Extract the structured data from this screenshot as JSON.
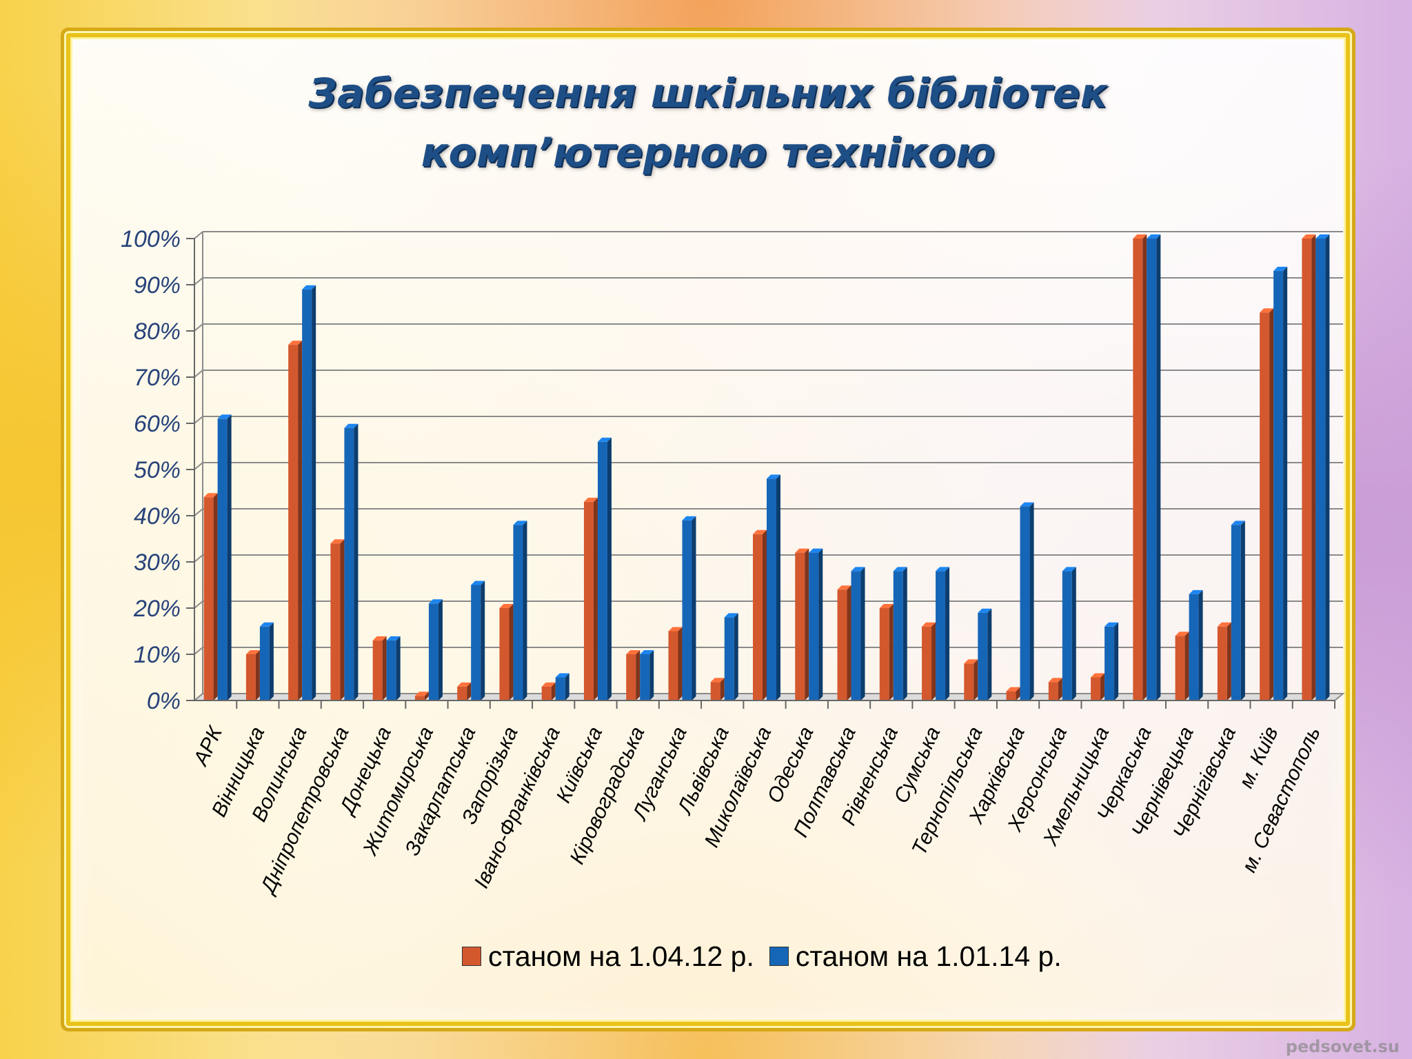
{
  "title": {
    "line1": "Забезпечення шкільних бібліотек",
    "line2": "комп’ютерною технікою"
  },
  "watermark": "pedsovet.su",
  "chart_data": {
    "type": "bar",
    "title": "Забезпечення шкільних бібліотек комп’ютерною технікою",
    "xlabel": "",
    "ylabel": "",
    "ylim": [
      0,
      100
    ],
    "yticks": [
      "0%",
      "10%",
      "20%",
      "30%",
      "40%",
      "50%",
      "60%",
      "70%",
      "80%",
      "90%",
      "100%"
    ],
    "grid": true,
    "legend_position": "bottom",
    "categories": [
      "АРК",
      "Вінницька",
      "Волинська",
      "Дніпропетровська",
      "Донецька",
      "Житомирська",
      "Закарпатська",
      "Запорізька",
      "Івано-Франківська",
      "Київська",
      "Кіровоградська",
      "Луганська",
      "Львівська",
      "Миколаївська",
      "Одеська",
      "Полтавська",
      "Рівненська",
      "Сумська",
      "Тернопільська",
      "Харківська",
      "Херсонська",
      "Хмельницька",
      "Черкаська",
      "Чернівецька",
      "Чернігівська",
      "м. Київ",
      "м. Севастополь"
    ],
    "series": [
      {
        "name": "станом на 1.04.12 р.",
        "color": "#d4582e",
        "values": [
          44,
          10,
          77,
          34,
          13,
          1,
          3,
          20,
          3,
          43,
          10,
          15,
          4,
          36,
          32,
          24,
          20,
          16,
          8,
          2,
          4,
          5,
          100,
          14,
          16,
          84,
          100
        ]
      },
      {
        "name": "станом на 1.01.14 р.",
        "color": "#1666b8",
        "values": [
          61,
          16,
          89,
          59,
          13,
          21,
          25,
          38,
          5,
          56,
          10,
          39,
          18,
          48,
          32,
          28,
          28,
          28,
          19,
          42,
          28,
          16,
          100,
          23,
          38,
          93,
          100
        ]
      }
    ]
  }
}
